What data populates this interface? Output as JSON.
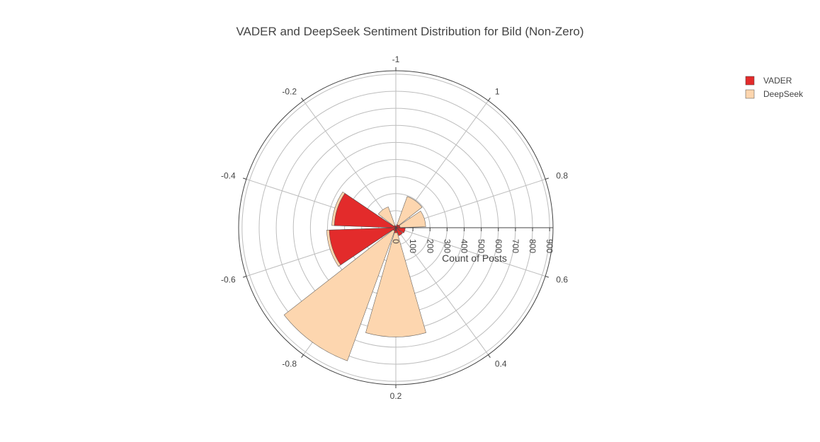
{
  "chart_data": {
    "type": "barpolar",
    "title": "VADER and DeepSeek Sentiment Distribution for Bild (Non-Zero)",
    "radial_axis_title": "Count of Posts",
    "radial_ticks": [
      0,
      100,
      200,
      300,
      400,
      500,
      600,
      700,
      800,
      900
    ],
    "radial_range": [
      0,
      920
    ],
    "angular_tick_labels": [
      "-1",
      "1",
      "0.8",
      "0.6",
      "0.4",
      "0.2",
      "-0.8",
      "-0.6",
      "-0.4",
      "-0.2"
    ],
    "angular_direction": "clockwise",
    "angular_rotation": 90,
    "grid": true,
    "legend_position": "top-right",
    "series": [
      {
        "name": "VADER",
        "color": "#e32b2b",
        "bars": [
          {
            "sentiment": "-1",
            "count": 10
          },
          {
            "sentiment": "1",
            "count": 20
          },
          {
            "sentiment": "0.8",
            "count": 25
          },
          {
            "sentiment": "0.6",
            "count": 55
          },
          {
            "sentiment": "0.4",
            "count": 50
          },
          {
            "sentiment": "0.2",
            "count": 30
          },
          {
            "sentiment": "-0.8",
            "count": 20
          },
          {
            "sentiment": "-0.6",
            "count": 390
          },
          {
            "sentiment": "-0.4",
            "count": 360
          },
          {
            "sentiment": "-0.2",
            "count": 15
          }
        ]
      },
      {
        "name": "DeepSeek",
        "color": "#fdd6af",
        "bars": [
          {
            "sentiment": "-1",
            "count": 0
          },
          {
            "sentiment": "1",
            "count": 195
          },
          {
            "sentiment": "0.8",
            "count": 175
          },
          {
            "sentiment": "0.6",
            "count": 10
          },
          {
            "sentiment": "0.4",
            "count": 10
          },
          {
            "sentiment": "0.2",
            "count": 640
          },
          {
            "sentiment": "-0.8",
            "count": 830
          },
          {
            "sentiment": "-0.6",
            "count": 405
          },
          {
            "sentiment": "-0.4",
            "count": 375
          },
          {
            "sentiment": "-0.2",
            "count": 130
          }
        ]
      }
    ]
  }
}
